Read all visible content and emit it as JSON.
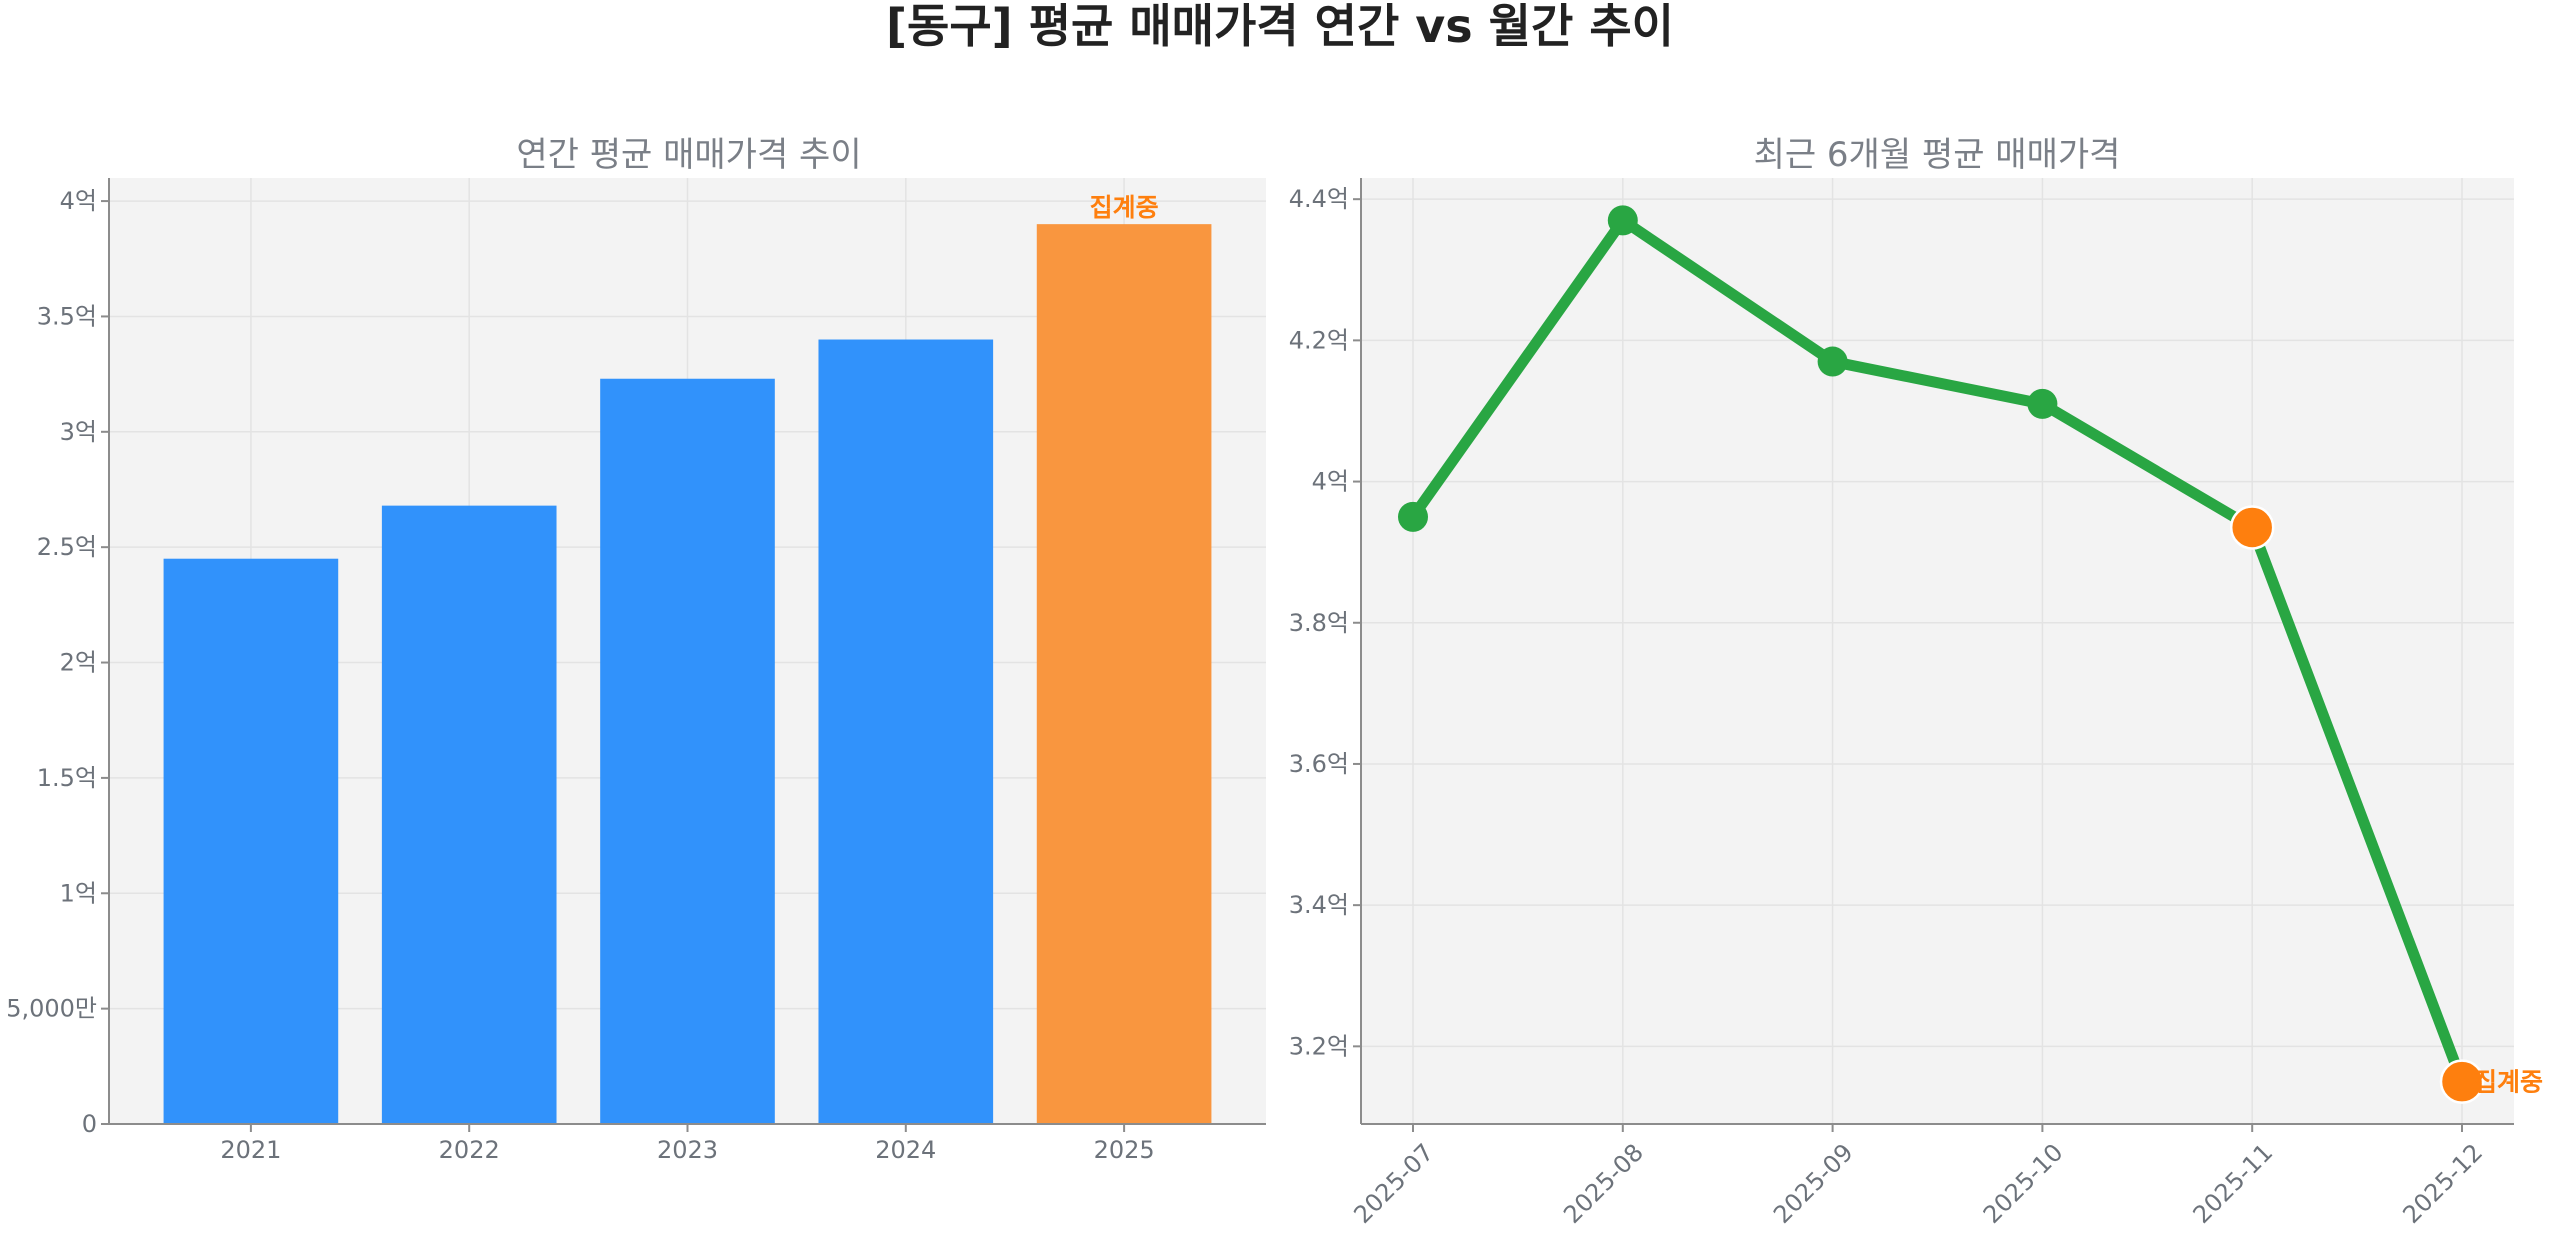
{
  "page_title": "[동구] 평균 매매가격 연간 vs 월간 추이",
  "colors": {
    "bar": "#3192fb",
    "bar_highlight": "#f9963f",
    "line": "#29a643",
    "marker": "#29a643",
    "marker_highlight": "#fe7f0e",
    "annotation": "#fe7f0e",
    "plot_bg": "#f3f3f3"
  },
  "chart_data": [
    {
      "type": "bar",
      "title": "연간 평균 매매가격 추이",
      "xlabel": "",
      "ylabel": "",
      "categories": [
        "2021",
        "2022",
        "2023",
        "2024",
        "2025"
      ],
      "values": [
        245000000,
        268000000,
        323000000,
        340000000,
        390000000
      ],
      "highlight_index": 4,
      "annotation": "집계중",
      "ylim": [
        0,
        410000000
      ],
      "yticks": [
        0,
        50000000,
        100000000,
        150000000,
        200000000,
        250000000,
        300000000,
        350000000,
        400000000
      ],
      "ytick_labels": [
        "0",
        "5,000만",
        "1억",
        "1.5억",
        "2억",
        "2.5억",
        "3억",
        "3.5억",
        "4억"
      ],
      "grid": true
    },
    {
      "type": "line",
      "title": "최근 6개월 평균 매매가격",
      "xlabel": "",
      "ylabel": "",
      "x": [
        "2025-07",
        "2025-08",
        "2025-09",
        "2025-10",
        "2025-11",
        "2025-12"
      ],
      "values": [
        395000000,
        437000000,
        417000000,
        411000000,
        393500000,
        315000000
      ],
      "highlight_indices": [
        4,
        5
      ],
      "annotation": "집계중",
      "ylim": [
        309000000,
        443000000
      ],
      "yticks": [
        320000000,
        340000000,
        360000000,
        380000000,
        400000000,
        420000000,
        440000000
      ],
      "ytick_labels": [
        "3.2억",
        "3.4억",
        "3.6억",
        "3.8억",
        "4억",
        "4.2억",
        "4.4억"
      ],
      "grid": true
    }
  ]
}
